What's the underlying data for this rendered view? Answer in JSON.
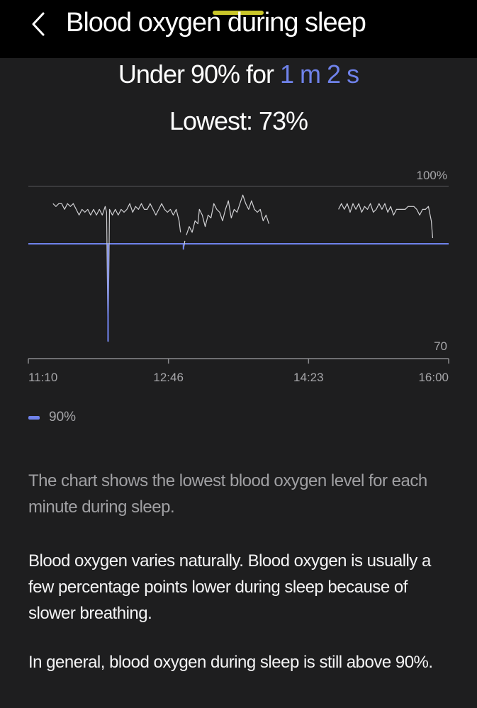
{
  "header": {
    "title": "Blood oxygen during sleep",
    "back_icon": "chevron-left-icon"
  },
  "summary": {
    "under_prefix": "Under 90% for ",
    "under_duration": "1 m 2 s",
    "lowest": "Lowest: 73%"
  },
  "colors": {
    "accent": "#6f82ea",
    "highlight": "#c9c62a",
    "background": "#1e1e1f",
    "line": "#d0d0d3"
  },
  "chart_data": {
    "type": "line",
    "x_tick_labels": [
      "11:10",
      "12:46",
      "14:23",
      "16:00"
    ],
    "x_range_minutes": [
      670,
      960
    ],
    "ylim": [
      70,
      100
    ],
    "y_tick_labels": [
      "100%",
      "70"
    ],
    "threshold": {
      "name": "90%",
      "value": 90
    },
    "legend": [
      "90%"
    ],
    "series": [
      {
        "values": [
          [
            687,
            97
          ],
          [
            689,
            96.5
          ],
          [
            691,
            97
          ],
          [
            693,
            97
          ],
          [
            695,
            96
          ],
          [
            697,
            97
          ],
          [
            699,
            96.5
          ],
          [
            701,
            97
          ],
          [
            703,
            96
          ],
          [
            705,
            95
          ],
          [
            707,
            96
          ],
          [
            709,
            95.5
          ],
          [
            711,
            96
          ],
          [
            713,
            95
          ],
          [
            715,
            96
          ],
          [
            717,
            95
          ],
          [
            719,
            96
          ],
          [
            721,
            95
          ],
          [
            723,
            96.5
          ],
          [
            724,
            95.5
          ],
          [
            725,
            73
          ],
          [
            726,
            96
          ],
          [
            728,
            95
          ],
          [
            730,
            96
          ],
          [
            732,
            95
          ],
          [
            734,
            96
          ],
          [
            736,
            95.5
          ],
          [
            738,
            96
          ],
          [
            740,
            97
          ],
          [
            742,
            95.5
          ],
          [
            744,
            96.5
          ],
          [
            746,
            96
          ],
          [
            748,
            97
          ],
          [
            750,
            96
          ],
          [
            752,
            96
          ],
          [
            754,
            97
          ],
          [
            756,
            96
          ],
          [
            758,
            95
          ],
          [
            760,
            96
          ],
          [
            762,
            97
          ],
          [
            764,
            96
          ],
          [
            766,
            95.5
          ],
          [
            768,
            96
          ],
          [
            770,
            95
          ],
          [
            772,
            96
          ],
          [
            774,
            94
          ],
          [
            775,
            92
          ]
        ]
      },
      {
        "values": [
          [
            777,
            89
          ],
          [
            778,
            90.5
          ]
        ]
      },
      {
        "values": [
          [
            779,
            91.5
          ],
          [
            781,
            93
          ],
          [
            783,
            92
          ],
          [
            785,
            94
          ],
          [
            787,
            93.5
          ],
          [
            788,
            96
          ],
          [
            790,
            95
          ],
          [
            792,
            93
          ],
          [
            794,
            95
          ],
          [
            796,
            94.5
          ],
          [
            798,
            97
          ],
          [
            800,
            96
          ],
          [
            802,
            95.5
          ],
          [
            804,
            94
          ],
          [
            806,
            96
          ],
          [
            808,
            97.5
          ],
          [
            810,
            94.5
          ],
          [
            812,
            96
          ],
          [
            814,
            95.5
          ],
          [
            816,
            97
          ],
          [
            818,
            98.5
          ],
          [
            820,
            97
          ],
          [
            822,
            96
          ],
          [
            824,
            97.5
          ],
          [
            826,
            96
          ],
          [
            828,
            95.5
          ],
          [
            830,
            96
          ],
          [
            832,
            94
          ],
          [
            834,
            95
          ],
          [
            836,
            93.5
          ]
        ]
      },
      {
        "values": [
          [
            884,
            96
          ],
          [
            886,
            97
          ],
          [
            888,
            96
          ],
          [
            890,
            97
          ],
          [
            892,
            95.5
          ],
          [
            894,
            97
          ],
          [
            896,
            96
          ],
          [
            898,
            97
          ],
          [
            900,
            95.5
          ],
          [
            902,
            96.5
          ],
          [
            904,
            96
          ],
          [
            906,
            97
          ],
          [
            908,
            95.5
          ],
          [
            910,
            96
          ],
          [
            912,
            97
          ],
          [
            914,
            96
          ],
          [
            916,
            97
          ],
          [
            918,
            95.5
          ],
          [
            920,
            96.5
          ],
          [
            922,
            95
          ],
          [
            924,
            96
          ],
          [
            926,
            96
          ],
          [
            928,
            96
          ],
          [
            930,
            96
          ],
          [
            932,
            96.5
          ],
          [
            934,
            96.5
          ],
          [
            936,
            96.5
          ],
          [
            938,
            96
          ],
          [
            940,
            95
          ],
          [
            942,
            96
          ],
          [
            944,
            96
          ],
          [
            946,
            96.5
          ],
          [
            948,
            94
          ],
          [
            949,
            91
          ]
        ]
      }
    ]
  },
  "body": {
    "p1": "The chart shows the lowest blood oxygen level for each minute during sleep.",
    "p2": "Blood oxygen varies naturally. Blood oxygen is usually a few percentage points lower during sleep because of slower breathing.",
    "p3": "In general, blood oxygen during sleep is still above 90%."
  }
}
